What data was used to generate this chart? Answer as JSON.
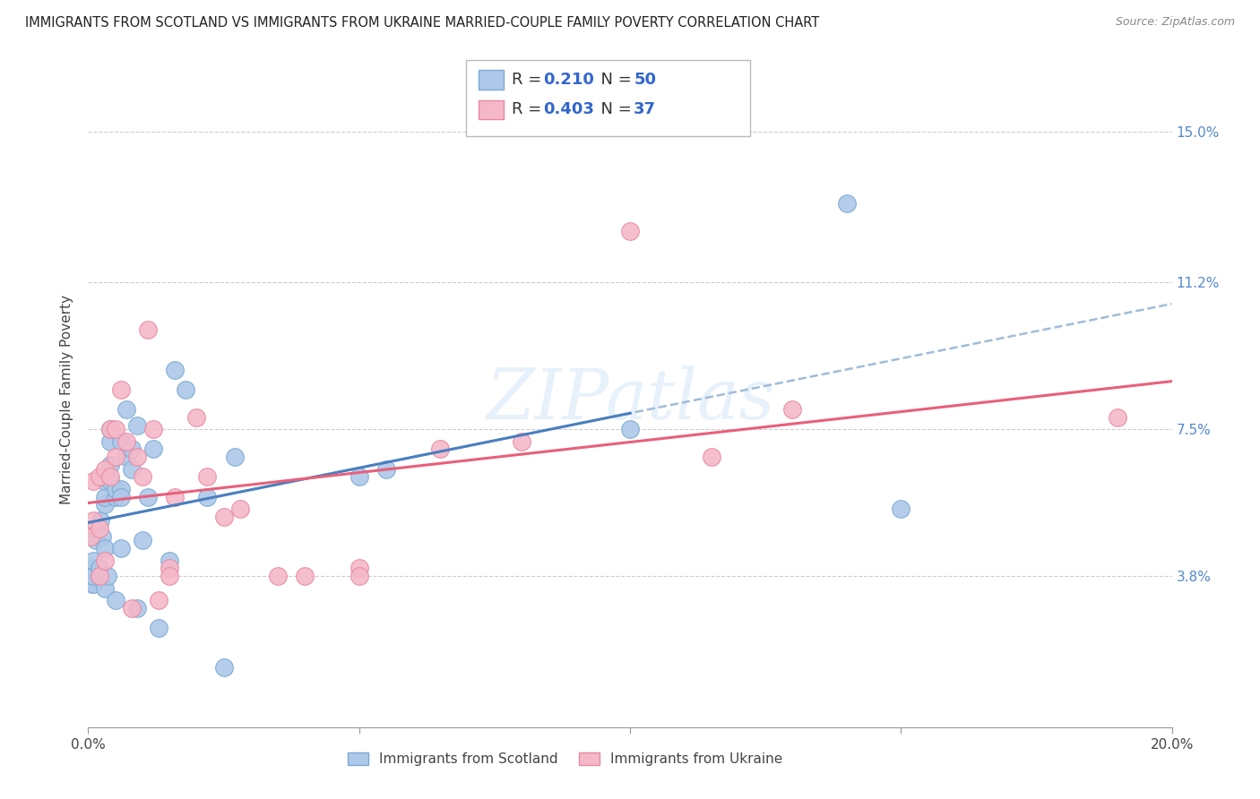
{
  "title": "IMMIGRANTS FROM SCOTLAND VS IMMIGRANTS FROM UKRAINE MARRIED-COUPLE FAMILY POVERTY CORRELATION CHART",
  "source": "Source: ZipAtlas.com",
  "ylabel": "Married-Couple Family Poverty",
  "xlim": [
    0.0,
    0.2
  ],
  "ylim": [
    0.0,
    0.165
  ],
  "ytick_labels": [
    "3.8%",
    "7.5%",
    "11.2%",
    "15.0%"
  ],
  "ytick_values": [
    0.038,
    0.075,
    0.112,
    0.15
  ],
  "scotland_color": "#adc8e8",
  "ukraine_color": "#f5b8c8",
  "scotland_edge": "#7aaad4",
  "ukraine_edge": "#e888a0",
  "trendline_scotland_solid": "#4a7fc0",
  "trendline_ukraine_solid": "#e8607a",
  "trendline_scotland_dashed": "#a0bcd8",
  "R_scotland": 0.21,
  "N_scotland": 50,
  "R_ukraine": 0.403,
  "N_ukraine": 37,
  "scotland_x": [
    0.0005,
    0.0007,
    0.001,
    0.001,
    0.001,
    0.001,
    0.0012,
    0.0015,
    0.002,
    0.002,
    0.0022,
    0.0025,
    0.003,
    0.003,
    0.003,
    0.003,
    0.003,
    0.0035,
    0.004,
    0.004,
    0.004,
    0.004,
    0.005,
    0.005,
    0.005,
    0.006,
    0.006,
    0.006,
    0.006,
    0.007,
    0.007,
    0.008,
    0.008,
    0.009,
    0.009,
    0.01,
    0.011,
    0.012,
    0.013,
    0.015,
    0.016,
    0.018,
    0.022,
    0.025,
    0.027,
    0.05,
    0.055,
    0.1,
    0.14,
    0.15
  ],
  "scotland_y": [
    0.038,
    0.036,
    0.04,
    0.036,
    0.038,
    0.042,
    0.05,
    0.047,
    0.038,
    0.04,
    0.052,
    0.048,
    0.056,
    0.058,
    0.062,
    0.045,
    0.035,
    0.038,
    0.062,
    0.066,
    0.072,
    0.075,
    0.058,
    0.06,
    0.032,
    0.06,
    0.058,
    0.072,
    0.045,
    0.08,
    0.068,
    0.065,
    0.07,
    0.076,
    0.03,
    0.047,
    0.058,
    0.07,
    0.025,
    0.042,
    0.09,
    0.085,
    0.058,
    0.015,
    0.068,
    0.063,
    0.065,
    0.075,
    0.132,
    0.055
  ],
  "ukraine_x": [
    0.0005,
    0.001,
    0.001,
    0.002,
    0.002,
    0.002,
    0.003,
    0.003,
    0.004,
    0.004,
    0.005,
    0.005,
    0.006,
    0.007,
    0.008,
    0.009,
    0.01,
    0.011,
    0.012,
    0.013,
    0.015,
    0.015,
    0.016,
    0.02,
    0.022,
    0.025,
    0.028,
    0.035,
    0.04,
    0.05,
    0.05,
    0.065,
    0.08,
    0.1,
    0.115,
    0.13,
    0.19
  ],
  "ukraine_y": [
    0.048,
    0.052,
    0.062,
    0.038,
    0.05,
    0.063,
    0.042,
    0.065,
    0.075,
    0.063,
    0.068,
    0.075,
    0.085,
    0.072,
    0.03,
    0.068,
    0.063,
    0.1,
    0.075,
    0.032,
    0.04,
    0.038,
    0.058,
    0.078,
    0.063,
    0.053,
    0.055,
    0.038,
    0.038,
    0.04,
    0.038,
    0.07,
    0.072,
    0.125,
    0.068,
    0.08,
    0.078
  ],
  "watermark": "ZIPatlas",
  "background_color": "#ffffff",
  "grid_color": "#cccccc"
}
